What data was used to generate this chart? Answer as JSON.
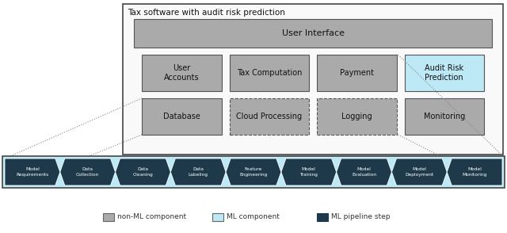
{
  "title": "Tax software with audit risk prediction",
  "bg_color": "#ffffff",
  "outer_box_fill": "#f8f8f8",
  "outer_box_edge": "#444444",
  "gray_box_color": "#aaaaaa",
  "gray_box_edge": "#555555",
  "ml_box_color": "#bde8f5",
  "ml_box_edge": "#555555",
  "pipeline_bg_color": "#bde8f5",
  "pipeline_bg_edge": "#444444",
  "arrow_fill": "#1e3a4a",
  "arrow_text_color": "#ffffff",
  "ui_label": "User Interface",
  "row2_boxes": [
    {
      "label": "User\nAccounts",
      "ml": false
    },
    {
      "label": "Tax Computation",
      "ml": false
    },
    {
      "label": "Payment",
      "ml": false
    },
    {
      "label": "Audit Risk\nPrediction",
      "ml": true
    }
  ],
  "row3_boxes": [
    {
      "label": "Database",
      "ml": false,
      "dashed": false
    },
    {
      "label": "Cloud Processing",
      "ml": false,
      "dashed": true
    },
    {
      "label": "Logging",
      "ml": false,
      "dashed": true
    },
    {
      "label": "Monitoring",
      "ml": false,
      "dashed": false
    }
  ],
  "pipeline_steps": [
    "Model\nRequirements",
    "Data\nCollection",
    "Data\nCleaning",
    "Data\nLabeling",
    "Feature\nEngineering",
    "Model\nTraining",
    "Model\nEvaluation",
    "Model\nDeployment",
    "Model\nMonitoring"
  ],
  "legend_items": [
    {
      "label": "non-ML component",
      "color": "#aaaaaa",
      "edge": "#666666"
    },
    {
      "label": "ML component",
      "color": "#bde8f5",
      "edge": "#666666"
    },
    {
      "label": "ML pipeline step",
      "color": "#1e3a4a",
      "edge": "#1e3a4a"
    }
  ]
}
